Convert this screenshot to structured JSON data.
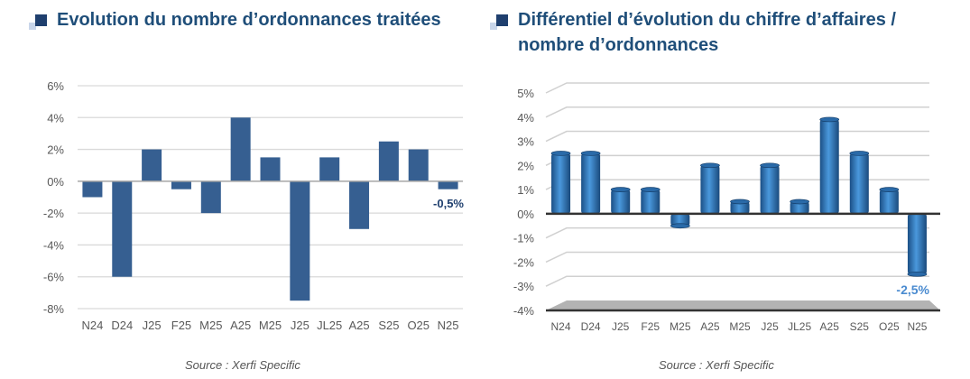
{
  "chart_data": [
    {
      "type": "bar",
      "title": "Evolution du nombre d’ordonnances traitées",
      "categories": [
        "N24",
        "D24",
        "J25",
        "F25",
        "M25",
        "A25",
        "M25",
        "J25",
        "JL25",
        "A25",
        "S25",
        "O25",
        "N25"
      ],
      "values": [
        -1,
        -6,
        2,
        -0.5,
        -2,
        4,
        1.5,
        -7.5,
        1.5,
        -3,
        2.5,
        2,
        -0.5
      ],
      "ylim": [
        -8,
        6
      ],
      "yticks": [
        "-8%",
        "-6%",
        "-4%",
        "-2%",
        "0%",
        "2%",
        "4%",
        "6%"
      ],
      "ytick_values": [
        -8,
        -6,
        -4,
        -2,
        0,
        2,
        4,
        6
      ],
      "data_label": "-0,5%",
      "grid": true,
      "color": "#365f91",
      "source": "Source : Xerfi Specific"
    },
    {
      "type": "bar",
      "title": "Différentiel d’évolution du chiffre d’affaires / nombre d’ordonnances",
      "categories": [
        "N24",
        "D24",
        "J25",
        "F25",
        "M25",
        "A25",
        "M25",
        "J25",
        "JL25",
        "A25",
        "S25",
        "O25",
        "N25"
      ],
      "values": [
        2.5,
        2.5,
        1,
        1,
        -0.5,
        2,
        0.5,
        2,
        0.5,
        3.9,
        2.5,
        1,
        -2.5
      ],
      "ylim": [
        -4,
        5
      ],
      "yticks": [
        "-4%",
        "-3%",
        "-2%",
        "-1%",
        "0%",
        "1%",
        "2%",
        "3%",
        "4%",
        "5%"
      ],
      "ytick_values": [
        -4,
        -3,
        -2,
        -1,
        0,
        1,
        2,
        3,
        4,
        5
      ],
      "data_label": "-2,5%",
      "grid": true,
      "color": "#2e75b6",
      "source": "Source : Xerfi Specific"
    }
  ]
}
